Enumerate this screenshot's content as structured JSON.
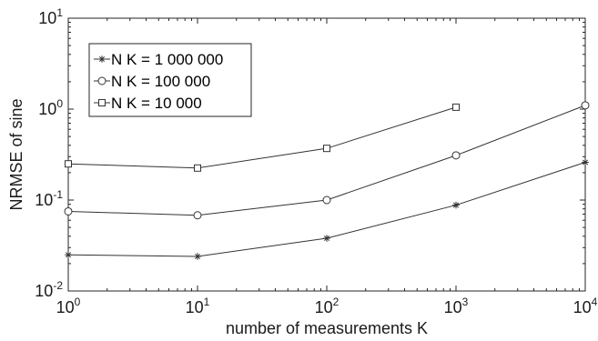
{
  "chart_data": {
    "type": "line",
    "x_scale": "log",
    "y_scale": "log",
    "xlabel": "number of measurements K",
    "ylabel": "NRMSE of sine",
    "xlim": [
      1,
      10000
    ],
    "ylim": [
      0.01,
      10
    ],
    "x_ticks": [
      {
        "base": "10",
        "exp": "0",
        "value": 1
      },
      {
        "base": "10",
        "exp": "1",
        "value": 10
      },
      {
        "base": "10",
        "exp": "2",
        "value": 100
      },
      {
        "base": "10",
        "exp": "3",
        "value": 1000
      },
      {
        "base": "10",
        "exp": "4",
        "value": 10000
      }
    ],
    "y_ticks": [
      {
        "base": "10",
        "exp": "-2",
        "value": 0.01
      },
      {
        "base": "10",
        "exp": "-1",
        "value": 0.1
      },
      {
        "base": "10",
        "exp": "0",
        "value": 1
      },
      {
        "base": "10",
        "exp": "1",
        "value": 10
      }
    ],
    "grid": false,
    "legend_position": "top-left",
    "series": [
      {
        "name": "N K = 1 000 000",
        "marker": "asterisk",
        "x": [
          1,
          10,
          100,
          1000,
          10000
        ],
        "y": [
          0.025,
          0.024,
          0.038,
          0.088,
          0.26
        ]
      },
      {
        "name": "N K = 100 000",
        "marker": "circle",
        "x": [
          1,
          10,
          100,
          1000,
          10000
        ],
        "y": [
          0.075,
          0.068,
          0.1,
          0.31,
          1.1
        ]
      },
      {
        "name": "N K = 10 000",
        "marker": "square",
        "x": [
          1,
          10,
          100,
          1000
        ],
        "y": [
          0.25,
          0.225,
          0.37,
          1.05
        ]
      }
    ],
    "colors": {
      "line": "#333333",
      "axes": "#262626"
    }
  }
}
